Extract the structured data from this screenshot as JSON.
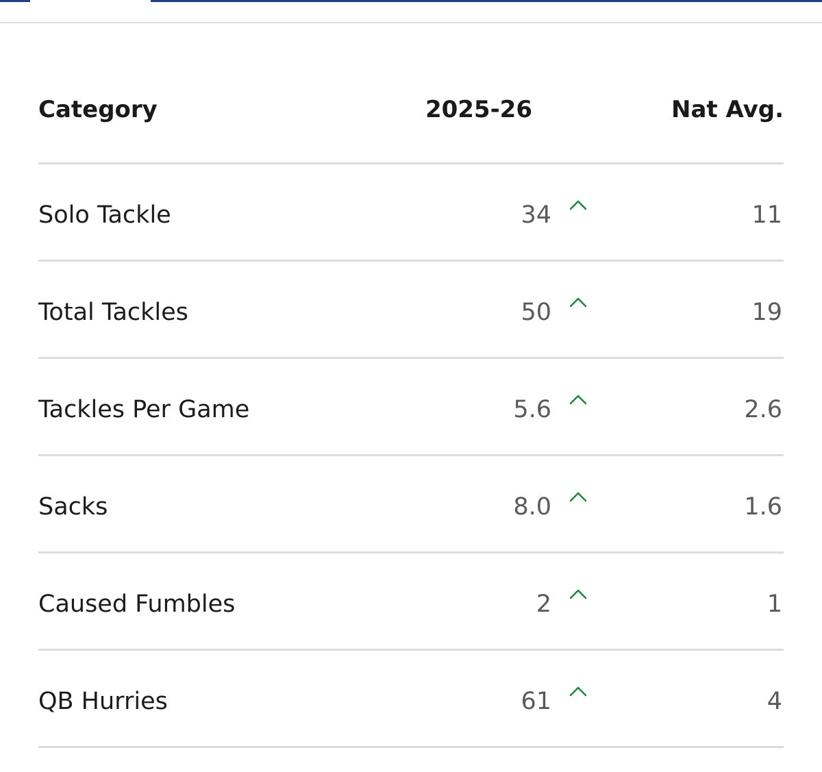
{
  "colors": {
    "tab_accent": "#1f3f8f",
    "divider": "#dcdcdc",
    "trend_up": "#1a8a3a"
  },
  "table": {
    "headers": {
      "category": "Category",
      "season": "2025-26",
      "nat_avg": "Nat Avg."
    },
    "rows": [
      {
        "category": "Solo Tackle",
        "season": "34",
        "trend": "up-arrow-icon",
        "nat_avg": "11"
      },
      {
        "category": "Total Tackles",
        "season": "50",
        "trend": "up-arrow-icon",
        "nat_avg": "19"
      },
      {
        "category": "Tackles Per Game",
        "season": "5.6",
        "trend": "up-arrow-icon",
        "nat_avg": "2.6"
      },
      {
        "category": "Sacks",
        "season": "8.0",
        "trend": "up-arrow-icon",
        "nat_avg": "1.6"
      },
      {
        "category": "Caused Fumbles",
        "season": "2",
        "trend": "up-arrow-icon",
        "nat_avg": "1"
      },
      {
        "category": "QB Hurries",
        "season": "61",
        "trend": "up-arrow-icon",
        "nat_avg": "4"
      }
    ]
  }
}
